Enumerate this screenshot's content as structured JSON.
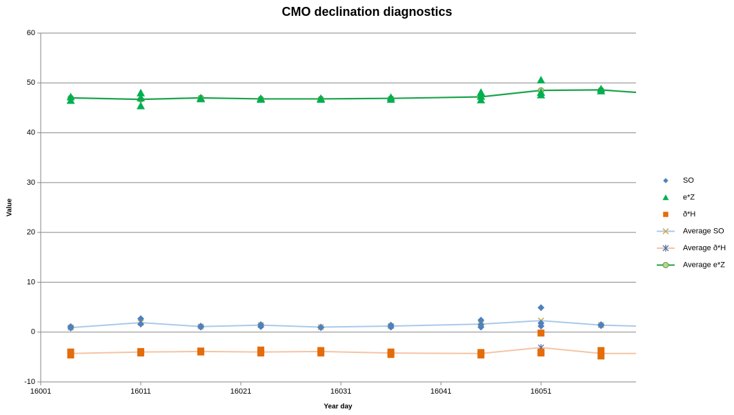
{
  "chart_data": {
    "type": "scatter",
    "title": "CMO declination diagnostics",
    "x_label": "Year day",
    "y_label": "Value",
    "xlim": [
      16001,
      16060.5
    ],
    "ylim": [
      -10,
      60
    ],
    "xticks": [
      16001,
      16011,
      16021,
      16031,
      16041,
      16051
    ],
    "yticks": [
      -10,
      0,
      10,
      20,
      30,
      40,
      50,
      60
    ],
    "grid": true,
    "legend": "right",
    "series": [
      {
        "name": "SO",
        "color": "#4f81bd",
        "marker": "diamond",
        "line": false,
        "x": [
          16004,
          16004,
          16011,
          16011,
          16017,
          16017,
          16023,
          16023,
          16029,
          16029,
          16036,
          16036,
          16045,
          16045,
          16045,
          16051,
          16051,
          16051,
          16057,
          16057
        ],
        "values": [
          1.1,
          0.8,
          2.7,
          1.6,
          1.2,
          1.0,
          1.5,
          1.1,
          1.0,
          0.9,
          1.4,
          1.0,
          2.4,
          1.5,
          1.0,
          4.9,
          1.8,
          1.2,
          1.5,
          1.3
        ]
      },
      {
        "name": "e*Z",
        "color": "#00b050",
        "marker": "triangle",
        "line": false,
        "x": [
          16004,
          16004,
          16011,
          16011,
          16011,
          16017,
          16017,
          16023,
          16023,
          16029,
          16029,
          16036,
          16036,
          16045,
          16045,
          16045,
          16051,
          16051,
          16051,
          16057,
          16057
        ],
        "values": [
          47.2,
          46.5,
          48.0,
          47.0,
          45.4,
          47.0,
          46.8,
          46.9,
          46.7,
          46.9,
          46.7,
          47.1,
          46.7,
          48.1,
          47.3,
          46.6,
          50.6,
          48.1,
          47.6,
          48.8,
          48.4
        ]
      },
      {
        "name": "ð*H",
        "color": "#e46c0a",
        "marker": "square",
        "line": false,
        "x": [
          16004,
          16004,
          16011,
          16011,
          16017,
          16017,
          16023,
          16023,
          16029,
          16029,
          16036,
          16036,
          16045,
          16045,
          16051,
          16051,
          16051,
          16057,
          16057
        ],
        "values": [
          -4.0,
          -4.6,
          -3.9,
          -4.2,
          -3.8,
          -4.0,
          -3.6,
          -4.2,
          -3.7,
          -4.2,
          -4.0,
          -4.5,
          -4.1,
          -4.6,
          -0.2,
          -4.0,
          -4.2,
          -3.7,
          -4.8
        ]
      },
      {
        "name": "Average SO",
        "color": "#a9c9e8",
        "marker": "x",
        "marker_color": "#c8a84a",
        "line": true,
        "x": [
          16004,
          16011,
          16017,
          16023,
          16029,
          16036,
          16045,
          16051,
          16057,
          16064
        ],
        "values": [
          0.9,
          1.9,
          1.1,
          1.4,
          1.0,
          1.2,
          1.6,
          2.3,
          1.4,
          1.0
        ]
      },
      {
        "name": "Average ð*H",
        "color": "#f5c3a3",
        "marker": "star",
        "marker_color": "#4f6fb0",
        "line": true,
        "x": [
          16004,
          16011,
          16017,
          16023,
          16029,
          16036,
          16045,
          16051,
          16057,
          16064
        ],
        "values": [
          -4.3,
          -4.0,
          -3.9,
          -4.0,
          -3.9,
          -4.2,
          -4.3,
          -3.1,
          -4.3,
          -4.3
        ]
      },
      {
        "name": "Average e*Z",
        "color": "#1aa34a",
        "marker": "circle",
        "marker_color": "#b9d58e",
        "line": true,
        "x": [
          16004,
          16011,
          16017,
          16023,
          16029,
          16036,
          16045,
          16051,
          16057,
          16064
        ],
        "values": [
          47.0,
          46.7,
          47.0,
          46.8,
          46.8,
          46.9,
          47.2,
          48.5,
          48.6,
          47.6
        ]
      }
    ]
  }
}
